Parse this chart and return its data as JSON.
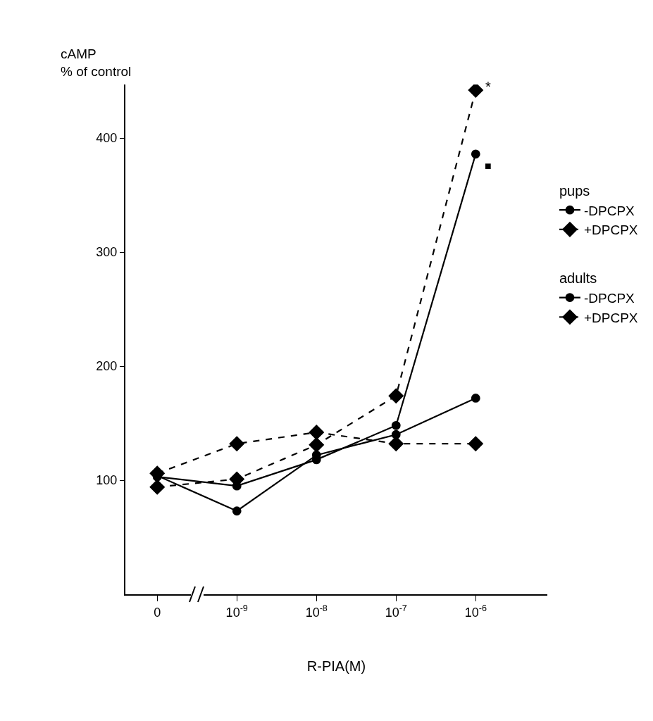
{
  "chart_data": {
    "type": "line",
    "xlabel": "R-PIA(M)",
    "ylabel": "cAMP\n% of control",
    "categories": [
      "0",
      "10$^{-9}$",
      "10$^{-8}$",
      "10$^{-7}$",
      "10$^{-6}$"
    ],
    "series": [
      {
        "name": "-DPCPX",
        "color": "#000000",
        "marker": "circle",
        "line_style": "solid",
        "values": [
          104,
          73,
          122,
          140,
          172
        ]
      },
      {
        "name": "+DPCPX",
        "color": "#000000",
        "marker": "diamond",
        "line_style": "dashed",
        "values": [
          106,
          132,
          142,
          132,
          132
        ]
      },
      {
        "name": "-DPCPX",
        "color": "#000000",
        "marker": "circle",
        "line_style": "solid",
        "values": [
          103,
          95,
          118,
          148,
          386
        ]
      },
      {
        "name": "+DPCPX",
        "color": "#000000",
        "marker": "diamond",
        "line_style": "dashed",
        "values": [
          94,
          101,
          131,
          174,
          442
        ]
      }
    ],
    "annotations": [
      "pups",
      "adults",
      {
        "text": "*",
        "x": "10$^{-6}$",
        "y": 445
      },
      "■"
    ],
    "ylim": [
      0,
      447
    ],
    "yticks": [
      100,
      200,
      300,
      400
    ],
    "grid": false,
    "legend": "right"
  }
}
